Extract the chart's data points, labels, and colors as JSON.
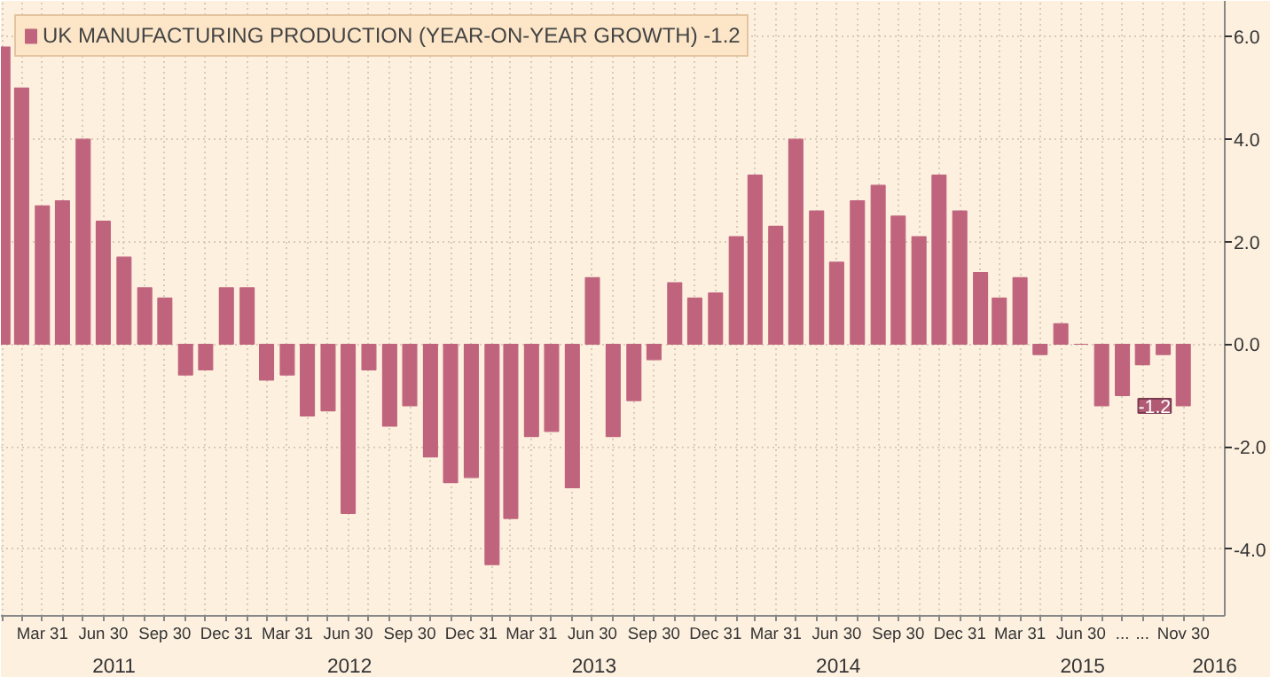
{
  "chart_data": {
    "type": "bar",
    "x": [
      "2011-01-31",
      "2011-02-28",
      "2011-03-31",
      "2011-04-30",
      "2011-05-31",
      "2011-06-30",
      "2011-07-31",
      "2011-08-31",
      "2011-09-30",
      "2011-10-31",
      "2011-11-30",
      "2011-12-31",
      "2012-01-31",
      "2012-02-29",
      "2012-03-31",
      "2012-04-30",
      "2012-05-31",
      "2012-06-30",
      "2012-07-31",
      "2012-08-31",
      "2012-09-30",
      "2012-10-31",
      "2012-11-30",
      "2012-12-31",
      "2013-01-31",
      "2013-02-28",
      "2013-03-31",
      "2013-04-30",
      "2013-05-31",
      "2013-06-30",
      "2013-07-31",
      "2013-08-31",
      "2013-09-30",
      "2013-10-31",
      "2013-11-30",
      "2013-12-31",
      "2014-01-31",
      "2014-02-28",
      "2014-03-31",
      "2014-04-30",
      "2014-05-31",
      "2014-06-30",
      "2014-07-31",
      "2014-08-31",
      "2014-09-30",
      "2014-10-31",
      "2014-11-30",
      "2014-12-31",
      "2015-01-31",
      "2015-02-28",
      "2015-03-31",
      "2015-04-30",
      "2015-05-31",
      "2015-06-30",
      "2015-07-31",
      "2015-08-31",
      "2015-09-30",
      "2015-10-31",
      "2015-11-30"
    ],
    "series": [
      {
        "name": "UK MANUFACTURING PRODUCTION (YEAR-ON-YEAR GROWTH) -1.2",
        "color": "#c0647e",
        "values": [
          5.8,
          5.0,
          2.7,
          2.8,
          4.0,
          2.4,
          1.7,
          1.1,
          0.9,
          -0.6,
          -0.5,
          1.1,
          1.1,
          -0.7,
          -0.6,
          -1.4,
          -1.3,
          -3.3,
          -0.5,
          -1.6,
          -1.2,
          -2.2,
          -2.7,
          -2.6,
          -4.3,
          -3.4,
          -1.8,
          -1.7,
          -2.8,
          1.3,
          -1.8,
          -1.1,
          -0.3,
          1.2,
          0.9,
          1.0,
          2.1,
          3.3,
          2.3,
          4.0,
          2.6,
          1.6,
          2.8,
          3.1,
          2.5,
          2.1,
          3.3,
          2.6,
          1.4,
          0.9,
          1.3,
          -0.2,
          0.4,
          0.0,
          -1.2,
          -1.0,
          -0.4,
          -0.2,
          -1.2
        ]
      }
    ],
    "xlim": [
      "2011-01-28",
      "2016-01-31"
    ],
    "xticks": [
      {
        "value": "2011-01-31",
        "label": null
      },
      {
        "value": "2011-02-28",
        "label": null
      },
      {
        "value": "2011-03-31",
        "label": "Mar 31"
      },
      {
        "value": "2011-04-30",
        "label": null
      },
      {
        "value": "2011-05-31",
        "label": null
      },
      {
        "value": "2011-06-30",
        "label": "Jun 30"
      },
      {
        "value": "2011-07-31",
        "label": null
      },
      {
        "value": "2011-08-31",
        "label": null
      },
      {
        "value": "2011-09-30",
        "label": "Sep 30"
      },
      {
        "value": "2011-10-31",
        "label": null
      },
      {
        "value": "2011-11-30",
        "label": null
      },
      {
        "value": "2011-12-31",
        "label": "Dec 31"
      },
      {
        "value": "2012-01-31",
        "label": null
      },
      {
        "value": "2012-02-29",
        "label": null
      },
      {
        "value": "2012-03-31",
        "label": "Mar 31"
      },
      {
        "value": "2012-04-30",
        "label": null
      },
      {
        "value": "2012-05-31",
        "label": null
      },
      {
        "value": "2012-06-30",
        "label": "Jun 30"
      },
      {
        "value": "2012-07-31",
        "label": null
      },
      {
        "value": "2012-08-31",
        "label": null
      },
      {
        "value": "2012-09-30",
        "label": "Sep 30"
      },
      {
        "value": "2012-10-31",
        "label": null
      },
      {
        "value": "2012-11-30",
        "label": null
      },
      {
        "value": "2012-12-31",
        "label": "Dec 31"
      },
      {
        "value": "2013-01-31",
        "label": null
      },
      {
        "value": "2013-02-28",
        "label": null
      },
      {
        "value": "2013-03-31",
        "label": "Mar 31"
      },
      {
        "value": "2013-04-30",
        "label": null
      },
      {
        "value": "2013-05-31",
        "label": null
      },
      {
        "value": "2013-06-30",
        "label": "Jun 30"
      },
      {
        "value": "2013-07-31",
        "label": null
      },
      {
        "value": "2013-08-31",
        "label": null
      },
      {
        "value": "2013-09-30",
        "label": "Sep 30"
      },
      {
        "value": "2013-10-31",
        "label": null
      },
      {
        "value": "2013-11-30",
        "label": null
      },
      {
        "value": "2013-12-31",
        "label": "Dec 31"
      },
      {
        "value": "2014-01-31",
        "label": null
      },
      {
        "value": "2014-02-28",
        "label": null
      },
      {
        "value": "2014-03-31",
        "label": "Mar 31"
      },
      {
        "value": "2014-04-30",
        "label": null
      },
      {
        "value": "2014-05-31",
        "label": null
      },
      {
        "value": "2014-06-30",
        "label": "Jun 30"
      },
      {
        "value": "2014-07-31",
        "label": null
      },
      {
        "value": "2014-08-31",
        "label": null
      },
      {
        "value": "2014-09-30",
        "label": "Sep 30"
      },
      {
        "value": "2014-10-31",
        "label": null
      },
      {
        "value": "2014-11-30",
        "label": null
      },
      {
        "value": "2014-12-31",
        "label": "Dec 31"
      },
      {
        "value": "2015-01-31",
        "label": null
      },
      {
        "value": "2015-02-28",
        "label": null
      },
      {
        "value": "2015-03-31",
        "label": "Mar 31"
      },
      {
        "value": "2015-04-30",
        "label": null
      },
      {
        "value": "2015-05-31",
        "label": null
      },
      {
        "value": "2015-06-30",
        "label": "Jun 30"
      },
      {
        "value": "2015-07-31",
        "label": null
      },
      {
        "value": "2015-08-31",
        "label": "..."
      },
      {
        "value": "2015-09-30",
        "label": "..."
      },
      {
        "value": "2015-10-31",
        "label": null
      },
      {
        "value": "2015-11-30",
        "label": "Nov 30"
      },
      {
        "value": "2015-12-31",
        "label": null
      }
    ],
    "ylim": [
      -5.3,
      6.7
    ],
    "yticks": [
      {
        "value": -4,
        "label": "-4.0"
      },
      {
        "value": -2,
        "label": "-2.0"
      },
      {
        "value": 0,
        "label": "0.0"
      },
      {
        "value": 2,
        "label": "2.0"
      },
      {
        "value": 4,
        "label": "4.0"
      },
      {
        "value": 6,
        "label": "6.0"
      }
    ],
    "annotations": [
      "2011",
      "2012",
      "2013",
      "2014",
      "2015",
      "2016",
      {
        "text": "-1.2",
        "x": "2015-11-30",
        "y": -1.2
      }
    ],
    "grid": true,
    "legend": "top left"
  }
}
